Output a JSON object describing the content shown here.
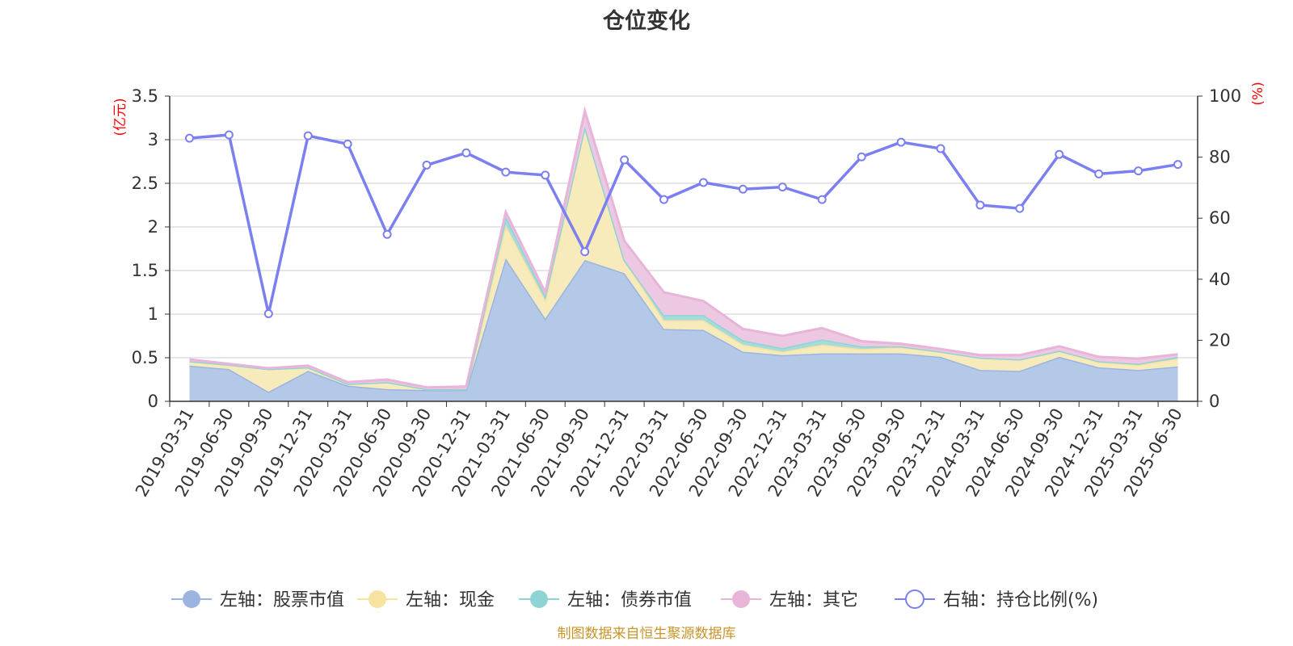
{
  "chart_data": {
    "type": "area",
    "title": "仓位变化",
    "left_axis_unit": "(亿元)",
    "right_axis_unit": "(%)",
    "source": "制图数据来自恒生聚源数据库",
    "categories": [
      "2019-03-31",
      "2019-06-30",
      "2019-09-30",
      "2019-12-31",
      "2020-03-31",
      "2020-06-30",
      "2020-09-30",
      "2020-12-31",
      "2021-03-31",
      "2021-06-30",
      "2021-09-30",
      "2021-12-31",
      "2022-03-31",
      "2022-06-30",
      "2022-09-30",
      "2022-12-31",
      "2023-03-31",
      "2023-06-30",
      "2023-09-30",
      "2023-12-31",
      "2024-03-31",
      "2024-06-30",
      "2024-09-30",
      "2024-12-31",
      "2025-03-31",
      "2025-06-30"
    ],
    "left_axis": {
      "min": 0,
      "max": 3.5,
      "ticks": [
        0,
        0.5,
        1,
        1.5,
        2,
        2.5,
        3,
        3.5
      ],
      "tick_labels": [
        "0",
        "0.5",
        "1",
        "1.5",
        "2",
        "2.5",
        "3",
        "3.5"
      ]
    },
    "right_axis": {
      "min": 0,
      "max": 100,
      "ticks": [
        0,
        20,
        40,
        60,
        80,
        100
      ],
      "tick_labels": [
        "0",
        "20",
        "40",
        "60",
        "80",
        "100"
      ]
    },
    "grid": true,
    "legend_position": "bottom",
    "stacked_series": [
      {
        "name": "左轴：股票市值",
        "color": "#9bb5e0",
        "fill": "#b4c8e8",
        "values": [
          0.41,
          0.37,
          0.11,
          0.35,
          0.18,
          0.14,
          0.13,
          0.13,
          1.64,
          0.95,
          1.62,
          1.47,
          0.83,
          0.82,
          0.57,
          0.53,
          0.55,
          0.55,
          0.55,
          0.51,
          0.36,
          0.35,
          0.51,
          0.39,
          0.36,
          0.4
        ]
      },
      {
        "name": "左轴：现金",
        "color": "#f7e2a0",
        "fill": "#f7ebbb",
        "values": [
          0.05,
          0.05,
          0.26,
          0.04,
          0.02,
          0.08,
          0.01,
          0.01,
          0.38,
          0.21,
          1.53,
          0.15,
          0.1,
          0.11,
          0.08,
          0.04,
          0.1,
          0.05,
          0.07,
          0.06,
          0.14,
          0.13,
          0.07,
          0.06,
          0.06,
          0.09
        ]
      },
      {
        "name": "左轴：债券市值",
        "color": "#8fd4d4",
        "fill": "#a6dbdc",
        "values": [
          0,
          0,
          0,
          0,
          0,
          0,
          0,
          0,
          0.1,
          0.05,
          0,
          0,
          0.06,
          0.06,
          0.05,
          0.04,
          0.06,
          0.03,
          0.01,
          0,
          0,
          0,
          0,
          0.01,
          0.01,
          0.02
        ]
      },
      {
        "name": "左轴：其它",
        "color": "#e8b4d8",
        "fill": "#ecc8e2",
        "values": [
          0.02,
          0.01,
          0.01,
          0.02,
          0.02,
          0.03,
          0.02,
          0.03,
          0.05,
          0.04,
          0.18,
          0.22,
          0.26,
          0.16,
          0.13,
          0.14,
          0.13,
          0.06,
          0.03,
          0.03,
          0.03,
          0.05,
          0.05,
          0.05,
          0.06,
          0.03
        ]
      }
    ],
    "line_series": {
      "name": "右轴：持仓比例(%)",
      "color": "#7b7ff0",
      "values": [
        86.2,
        87.3,
        28.7,
        87.0,
        84.3,
        54.7,
        77.4,
        81.4,
        75.1,
        74.1,
        49.0,
        79.1,
        66.1,
        71.7,
        69.5,
        70.2,
        66.1,
        80.1,
        84.9,
        82.8,
        64.3,
        63.2,
        80.9,
        74.5,
        75.5,
        77.6
      ]
    }
  }
}
